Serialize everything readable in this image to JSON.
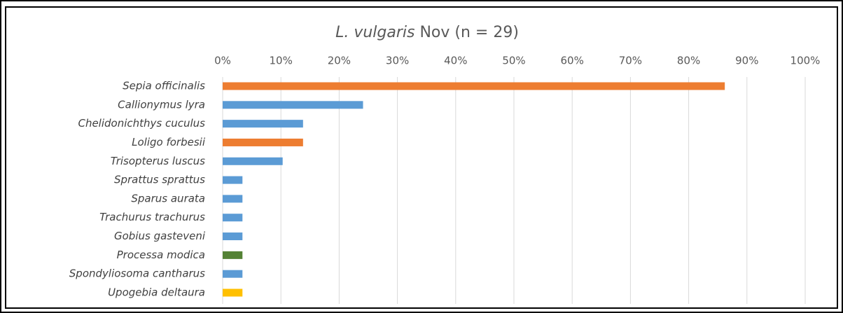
{
  "chart_data": {
    "type": "bar",
    "orientation": "horizontal",
    "title": [
      "L. vulgaris",
      "Nov (n = 29)"
    ],
    "categories": [
      "Sepia officinalis",
      "Callionymus lyra",
      "Chelidonichthys cuculus",
      "Loligo forbesii",
      "Trisopterus luscus",
      "Sprattus sprattus",
      "Sparus aurata",
      "Trachurus trachurus",
      "Gobius gasteveni",
      "Processa modica",
      "Spondyliosoma cantharus",
      "Upogebia deltaura"
    ],
    "values": [
      86.2,
      24.1,
      13.8,
      13.8,
      10.3,
      3.4,
      3.4,
      3.4,
      3.4,
      3.4,
      3.4,
      3.4
    ],
    "colors": [
      "#ed7d31",
      "#5b9bd5",
      "#5b9bd5",
      "#ed7d31",
      "#5b9bd5",
      "#5b9bd5",
      "#5b9bd5",
      "#5b9bd5",
      "#5b9bd5",
      "#548235",
      "#5b9bd5",
      "#ffc000"
    ],
    "xlim": [
      0,
      100
    ],
    "xticks": [
      {
        "value": 0,
        "label": "0%"
      },
      {
        "value": 10,
        "label": "10%"
      },
      {
        "value": 20,
        "label": "20%"
      },
      {
        "value": 30,
        "label": "30%"
      },
      {
        "value": 40,
        "label": "40%"
      },
      {
        "value": 50,
        "label": "50%"
      },
      {
        "value": 60,
        "label": "60%"
      },
      {
        "value": 70,
        "label": "70%"
      },
      {
        "value": 80,
        "label": "80%"
      },
      {
        "value": 90,
        "label": "90%"
      },
      {
        "value": 100,
        "label": "100%"
      }
    ],
    "grid": true
  }
}
